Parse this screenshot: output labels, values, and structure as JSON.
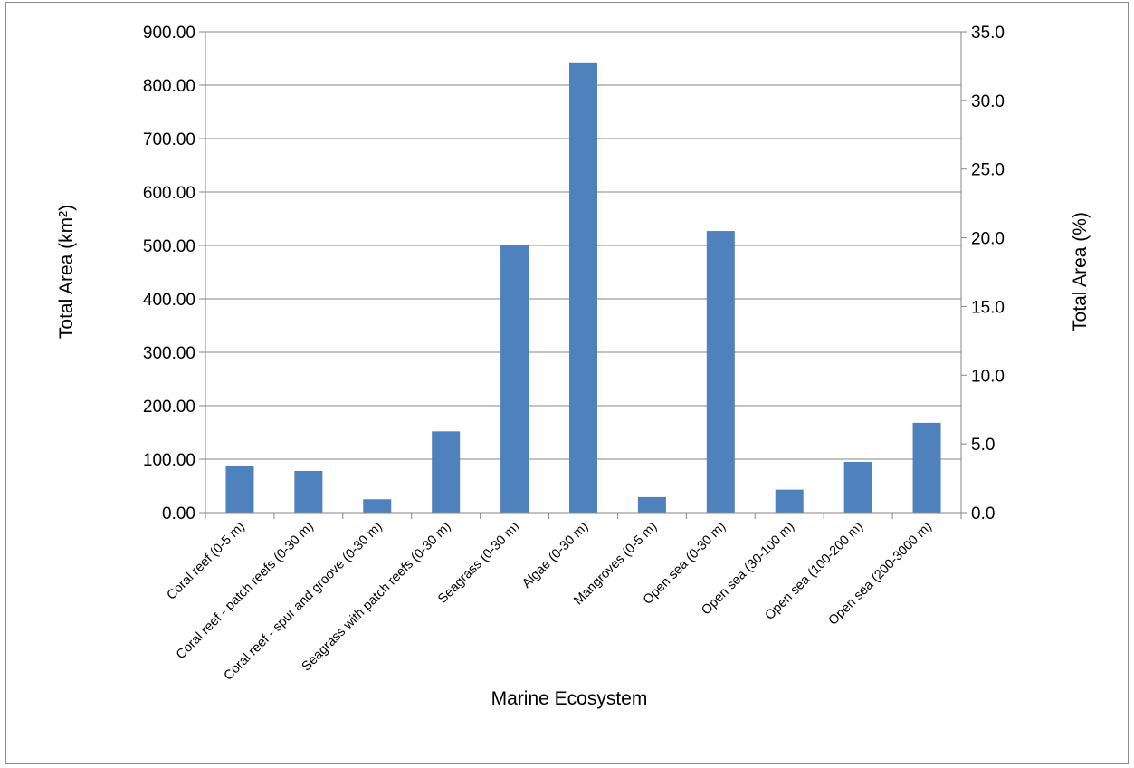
{
  "chart_data": {
    "type": "bar",
    "categories": [
      "Coral reef (0-5 m)",
      "Coral reef - patch reefs (0-30 m)",
      "Coral reef - spur and groove (0-30 m)",
      "Seagrass with patch reefs (0-30 m)",
      "Seagrass (0-30 m)",
      "Algae (0-30 m)",
      "Mangroves (0-5 m)",
      "Open sea (0-30 m)",
      "Open sea (30-100 m)",
      "Open sea (100-200 m)",
      "Open sea (200-3000 m)"
    ],
    "series": [
      {
        "values": [
          87,
          78,
          25,
          152,
          500,
          841,
          29,
          527,
          43,
          95,
          168
        ]
      }
    ],
    "xlabel": "Marine Ecosystem",
    "ylabel": "Total Area (km²)",
    "y2label": "Total Area (%)",
    "ylim": [
      0,
      900
    ],
    "y2lim": [
      0,
      35
    ],
    "yticks": [
      "0.00",
      "100.00",
      "200.00",
      "300.00",
      "400.00",
      "500.00",
      "600.00",
      "700.00",
      "800.00",
      "900.00"
    ],
    "y2ticks": [
      "0.0",
      "5.0",
      "10.0",
      "15.0",
      "20.0",
      "25.0",
      "30.0",
      "35.0"
    ],
    "grid": true,
    "legend": "none",
    "bar_color": "#4f81bd"
  }
}
